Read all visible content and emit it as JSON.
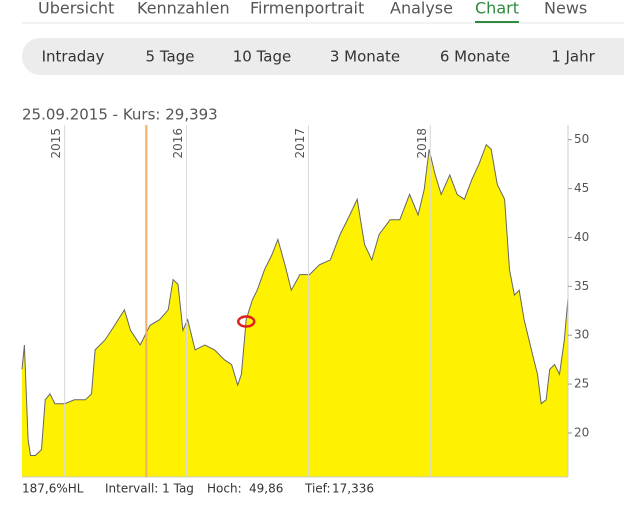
{
  "nav": {
    "tabs": [
      "Übersicht",
      "Kennzahlen",
      "Firmenportrait",
      "Analyse",
      "Chart",
      "News"
    ],
    "active": 4
  },
  "periods": [
    "Intraday",
    "5 Tage",
    "10 Tage",
    "3 Monate",
    "6 Monate",
    "1 Jahr"
  ],
  "header": "25.09.2015  -  Kurs: 29,393",
  "chart_data": {
    "type": "area",
    "x": [
      2014.65,
      2014.67,
      2014.7,
      2014.72,
      2014.76,
      2014.81,
      2014.84,
      2014.88,
      2014.92,
      2015.0,
      2015.08,
      2015.17,
      2015.22,
      2015.25,
      2015.33,
      2015.41,
      2015.49,
      2015.54,
      2015.62,
      2015.7,
      2015.78,
      2015.85,
      2015.89,
      2015.93,
      2015.97,
      2016.01,
      2016.07,
      2016.15,
      2016.23,
      2016.31,
      2016.37,
      2016.42,
      2016.45,
      2016.49,
      2016.54,
      2016.58,
      2016.64,
      2016.7,
      2016.75,
      2016.81,
      2016.86,
      2016.93,
      2017.01,
      2017.09,
      2017.18,
      2017.26,
      2017.34,
      2017.4,
      2017.46,
      2017.52,
      2017.58,
      2017.67,
      2017.75,
      2017.83,
      2017.9,
      2017.95,
      2017.99,
      2018.04,
      2018.09,
      2018.16,
      2018.22,
      2018.28,
      2018.34,
      2018.4,
      2018.46,
      2018.5,
      2018.55,
      2018.61,
      2018.65,
      2018.69,
      2018.73,
      2018.77,
      2018.83,
      2018.88,
      2018.91,
      2018.95,
      2018.98,
      2019.02,
      2019.06,
      2019.1,
      2019.13
    ],
    "values": [
      26.5,
      29,
      19.3,
      17.7,
      17.7,
      18.3,
      23.4,
      24,
      23,
      23,
      23.4,
      23.4,
      24,
      28.5,
      29.5,
      31,
      32.6,
      30.5,
      29,
      31,
      31.6,
      32.6,
      35.7,
      35.2,
      30.5,
      31.6,
      28.5,
      29,
      28.5,
      27.5,
      27,
      24.9,
      26,
      31.6,
      33.6,
      34.6,
      36.7,
      38.2,
      39.8,
      37.1,
      34.6,
      36.2,
      36.2,
      37.2,
      37.7,
      40.3,
      42.3,
      43.9,
      39.3,
      37.7,
      40.3,
      41.8,
      41.8,
      44.4,
      42.3,
      44.9,
      49,
      46.4,
      44.4,
      46.4,
      44.4,
      43.9,
      45.9,
      47.5,
      49.5,
      49,
      45.4,
      43.9,
      36.7,
      34.1,
      34.6,
      31.6,
      28.5,
      26,
      23,
      23.4,
      26.5,
      27,
      26,
      29.5,
      33.8
    ],
    "fill_color": "#fff200",
    "line_color": "#666666",
    "xlim": [
      2014.65,
      2019.13
    ],
    "xticks": [
      2015,
      2016,
      2017,
      2018
    ],
    "ylim": [
      15.5,
      51.5
    ],
    "yticks": [
      20,
      25,
      30,
      35,
      40,
      45,
      50
    ],
    "grid": true,
    "cursor_x": 2015.67,
    "cursor_color": "#f0b060",
    "marker": {
      "x": 2016.49,
      "y": 31.4,
      "color": "#e02020"
    }
  },
  "footer": {
    "range": "187,6%HL",
    "interval": "Intervall: 1 Tag",
    "high_label": "Hoch:",
    "high": "49,86",
    "low_label": "Tief:",
    "low": "17,336"
  }
}
